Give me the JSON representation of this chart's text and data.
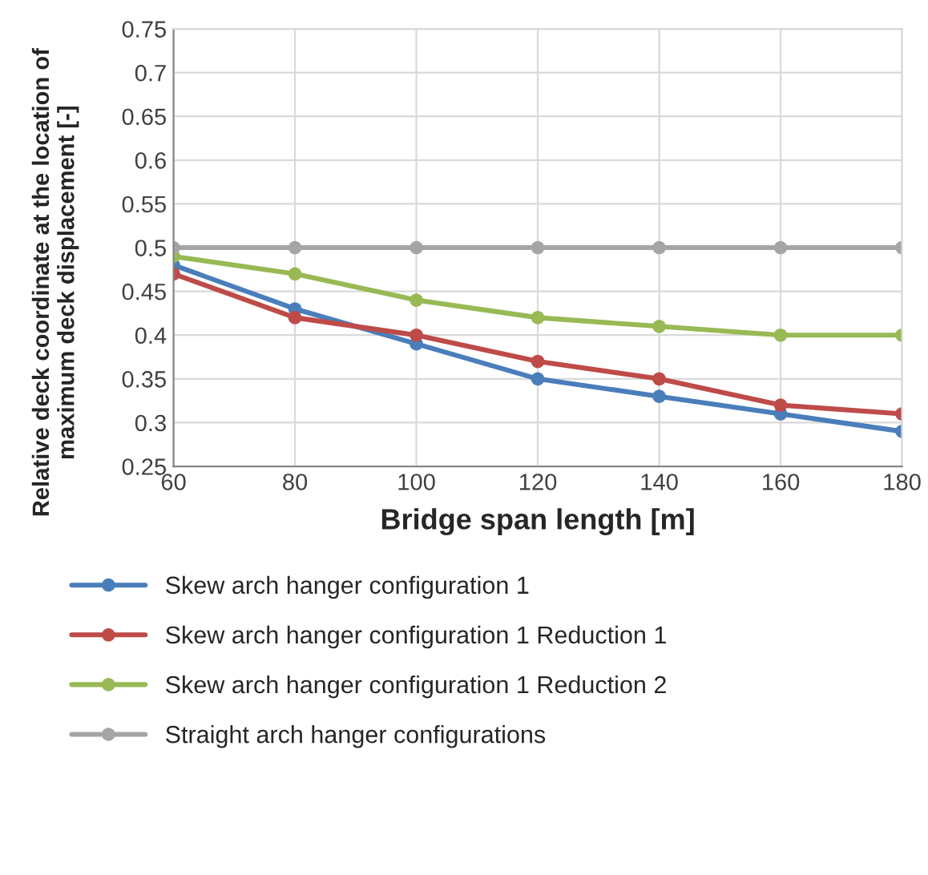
{
  "chart_data": {
    "type": "line",
    "xlabel": "Bridge span length [m]",
    "ylabel": "Relative deck coordinate at the location of\nmaximum deck displacement [-]",
    "x": [
      60,
      80,
      100,
      120,
      140,
      160,
      180
    ],
    "series": [
      {
        "name": "Skew arch hanger configuration 1",
        "color": "#4a7ebb",
        "values": [
          0.48,
          0.43,
          0.39,
          0.35,
          0.33,
          0.31,
          0.29
        ]
      },
      {
        "name": "Skew arch hanger configuration 1 Reduction 1",
        "color": "#be4b48",
        "values": [
          0.47,
          0.42,
          0.4,
          0.37,
          0.35,
          0.32,
          0.31
        ]
      },
      {
        "name": "Skew arch hanger configuration 1 Reduction 2",
        "color": "#98b954",
        "values": [
          0.49,
          0.47,
          0.44,
          0.42,
          0.41,
          0.4,
          0.4
        ]
      },
      {
        "name": "Straight arch hanger configurations",
        "color": "#a5a5a5",
        "values": [
          0.5,
          0.5,
          0.5,
          0.5,
          0.5,
          0.5,
          0.5
        ]
      }
    ],
    "xlim": [
      60,
      180
    ],
    "xticks": [
      60,
      80,
      100,
      120,
      140,
      160,
      180
    ],
    "ylim": [
      0.25,
      0.75
    ],
    "yticks": [
      0.25,
      0.3,
      0.35,
      0.4,
      0.45,
      0.5,
      0.55,
      0.6,
      0.65,
      0.7,
      0.75
    ],
    "grid": true,
    "legend": "bottom",
    "marker": "circle",
    "line_style": "solid"
  }
}
